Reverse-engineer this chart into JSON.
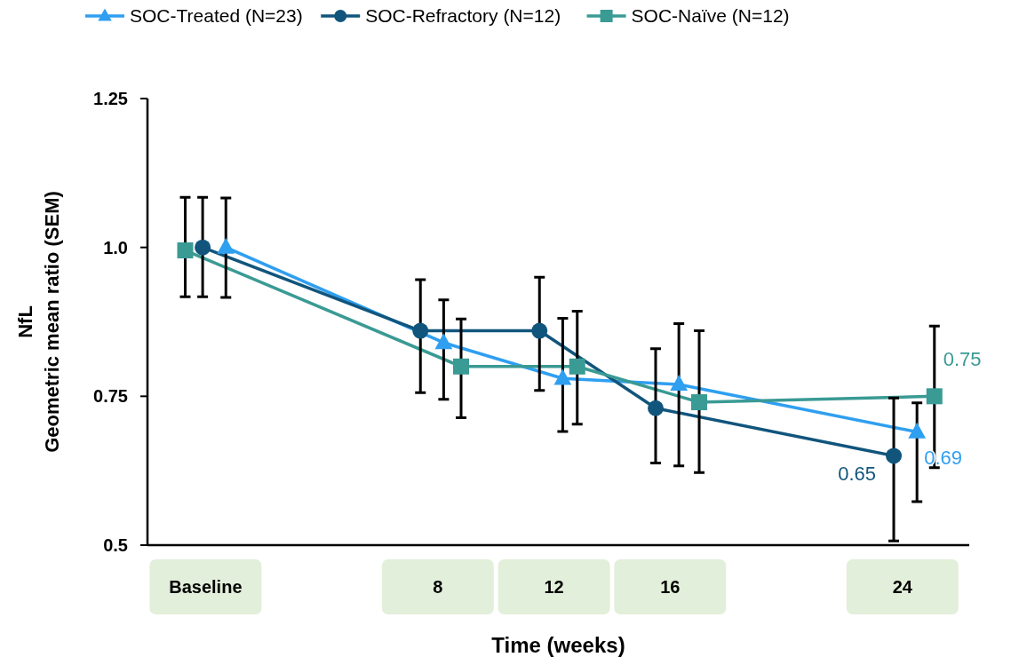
{
  "chart_data": {
    "type": "line",
    "xlabel": "Time (weeks)",
    "ylabel": "NfL\nGeometric mean ratio (SEM)",
    "xlim": [
      -2,
      26.3
    ],
    "xticks": [
      {
        "value": 0,
        "label": "Baseline"
      },
      8,
      12,
      16,
      24
    ],
    "ylim": [
      0.5,
      1.25
    ],
    "yticks": [
      0.5,
      0.75,
      {
        "value": 1.0,
        "label": "1.0"
      },
      1.25
    ],
    "grid": false,
    "legend": "top",
    "line_style": "solid",
    "series": [
      {
        "name": "SOC-Treated (N=23)",
        "color": "#2f9ff0",
        "marker": "triangle",
        "x": [
          0.7,
          8.2,
          12.3,
          16.3,
          24.5
        ],
        "values": [
          1.0,
          0.84,
          0.78,
          0.77,
          0.69
        ],
        "errors": [
          [
            0.916,
            1.083
          ],
          [
            0.745,
            0.912
          ],
          [
            0.691,
            0.881
          ],
          [
            0.633,
            0.872
          ],
          [
            0.573,
            0.739
          ]
        ],
        "value_labels": [
          null,
          null,
          null,
          null,
          "0.69"
        ]
      },
      {
        "name": "SOC-Refractory (N=12)",
        "color": "#11557c",
        "marker": "circle",
        "x": [
          -0.1,
          7.4,
          11.5,
          15.5,
          23.7
        ],
        "values": [
          1.0,
          0.86,
          0.86,
          0.73,
          0.65
        ],
        "errors": [
          [
            0.917,
            1.084
          ],
          [
            0.756,
            0.946
          ],
          [
            0.76,
            0.95
          ],
          [
            0.638,
            0.83
          ],
          [
            0.507,
            0.747
          ]
        ],
        "value_labels": [
          null,
          null,
          null,
          null,
          "0.65"
        ]
      },
      {
        "name": "SOC-Naïve (N=12)",
        "color": "#3a9a94",
        "marker": "square",
        "x": [
          -0.7,
          8.8,
          12.8,
          17.0,
          25.1
        ],
        "values": [
          0.995,
          0.8,
          0.8,
          0.74,
          0.75
        ],
        "errors": [
          [
            0.917,
            1.084
          ],
          [
            0.714,
            0.88
          ],
          [
            0.703,
            0.893
          ],
          [
            0.622,
            0.86
          ],
          [
            0.63,
            0.868
          ]
        ],
        "value_labels": [
          null,
          null,
          null,
          null,
          "0.75"
        ]
      }
    ]
  }
}
